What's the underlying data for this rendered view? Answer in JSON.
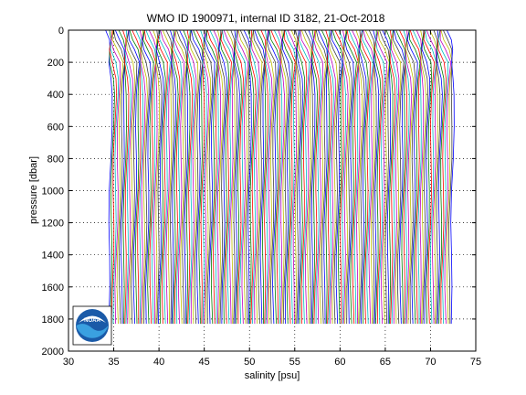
{
  "chart_data": {
    "type": "line",
    "title": "WMO ID 1900971, internal ID 3182, 21-Oct-2018",
    "xlabel": "salinity [psu]",
    "ylabel": "pressure [dbar]",
    "xlim": [
      30,
      75
    ],
    "ylim": [
      2000,
      0
    ],
    "y_reversed": true,
    "grid": true,
    "x_ticks": [
      "30",
      "35",
      "40",
      "45",
      "50",
      "55",
      "60",
      "65",
      "70",
      "75"
    ],
    "y_ticks": [
      "0",
      "200",
      "400",
      "600",
      "800",
      "1000",
      "1200",
      "1400",
      "1600",
      "1800",
      "2000"
    ],
    "profiles": {
      "count": 190,
      "first_offset_salinity": 34.5,
      "offset_step_psu": 0.2,
      "color_cycle": [
        "#0000ff",
        "#008000",
        "#ff0000",
        "#00bfbf",
        "#bf00bf",
        "#bfbf00",
        "#404040"
      ],
      "max_pressure_dbar": 1830,
      "shape_pressure": [
        0,
        60,
        120,
        200,
        300,
        400,
        600,
        800,
        1000,
        1200,
        1400,
        1600,
        1830
      ],
      "shape_delta_salinity": [
        -0.4,
        -0.3,
        -0.1,
        0.2,
        0.3,
        0.3,
        0.2,
        0.15,
        0.1,
        0.05,
        0.0,
        -0.05,
        -0.05
      ]
    },
    "logo": {
      "text": "NOAA"
    }
  }
}
